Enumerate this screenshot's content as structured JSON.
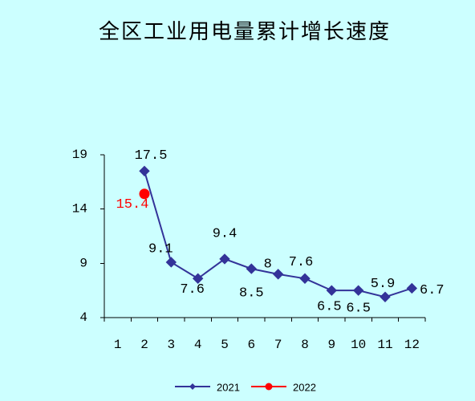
{
  "chart_data": {
    "type": "line",
    "title": "全区工业用电量累计增长速度",
    "xlabel": "",
    "ylabel": "",
    "categories": [
      "1",
      "2",
      "3",
      "4",
      "5",
      "6",
      "7",
      "8",
      "9",
      "10",
      "11",
      "12"
    ],
    "ylim": [
      4,
      19
    ],
    "yticks": [
      4,
      9,
      14,
      19
    ],
    "grid": false,
    "legend": "bottom",
    "background_color": "#ccffff",
    "series": [
      {
        "name": "2021",
        "values": [
          null,
          17.5,
          9.1,
          7.6,
          9.4,
          8.5,
          8,
          7.6,
          6.5,
          6.5,
          5.9,
          6.7
        ],
        "color": "#333399",
        "label_color": "#000000",
        "marker": "diamond"
      },
      {
        "name": "2022",
        "values": [
          null,
          15.4,
          null,
          null,
          null,
          null,
          null,
          null,
          null,
          null,
          null,
          null
        ],
        "color": "#ff0000",
        "label_color": "#ff0000",
        "marker": "circle"
      }
    ]
  }
}
